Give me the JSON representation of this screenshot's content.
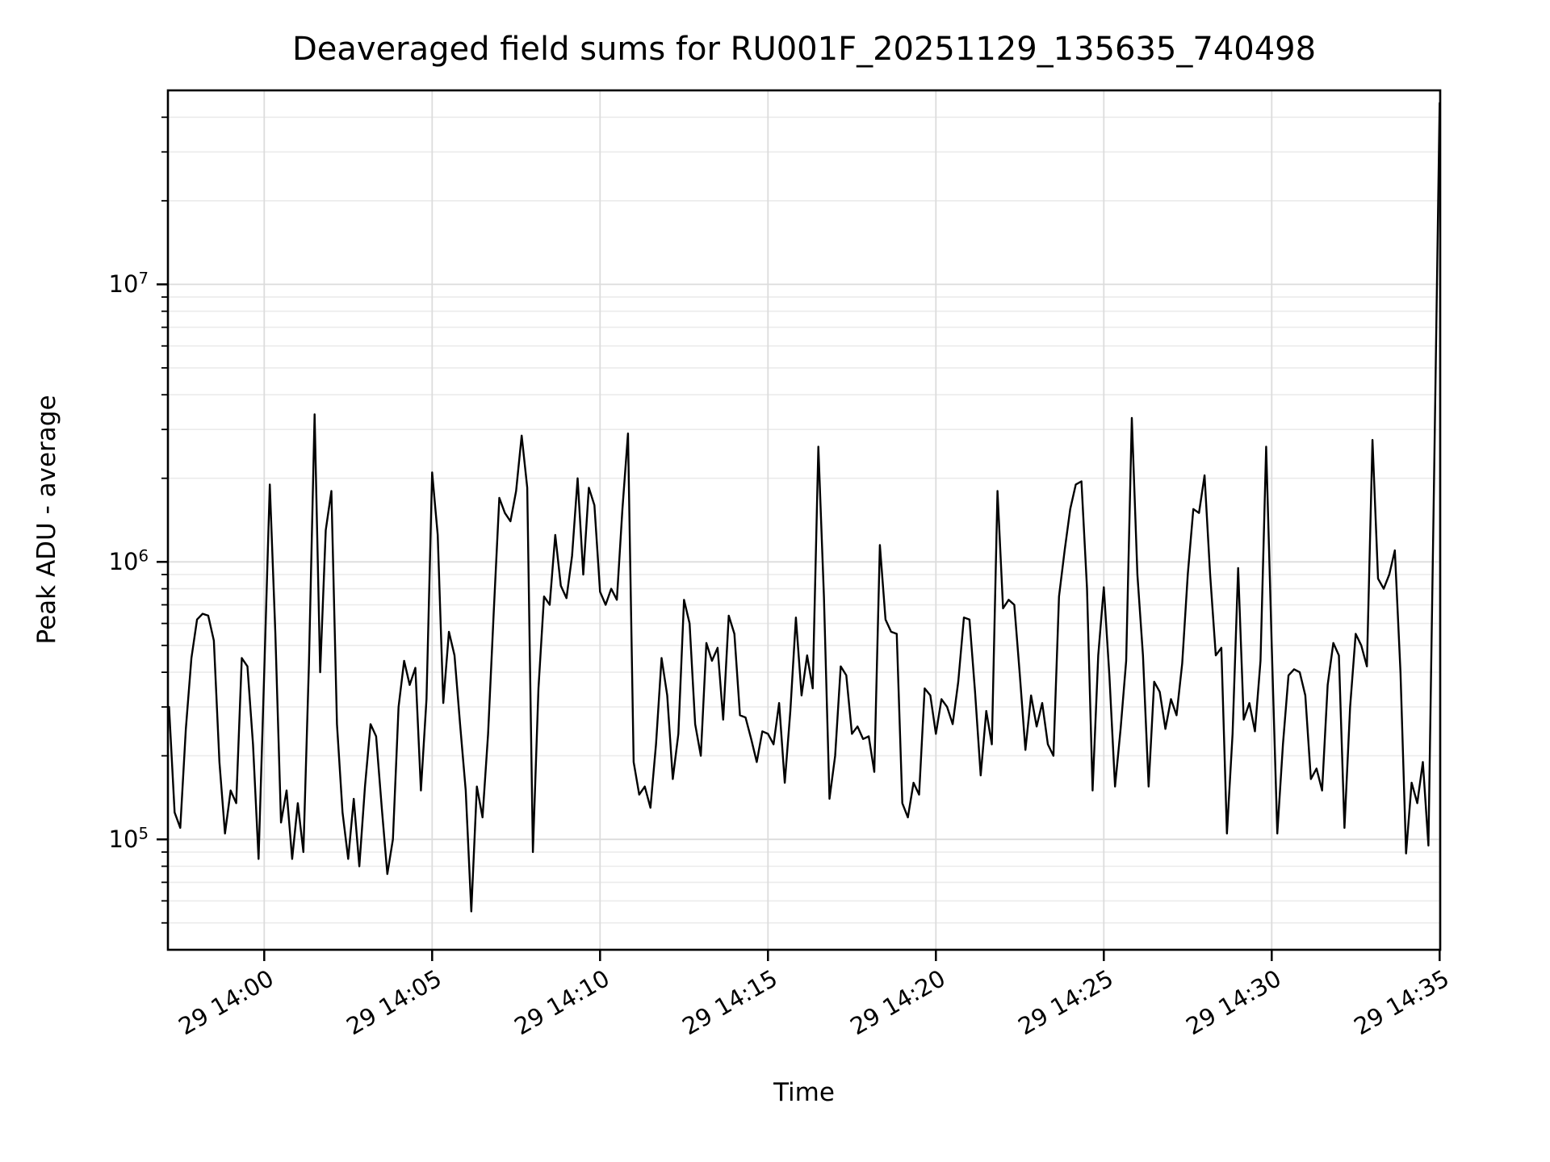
{
  "figure": {
    "background": "#ffffff",
    "line_color": "#000000",
    "major_grid_color": "#dcdcdc",
    "minor_grid_color": "#ebebeb",
    "spine_color": "#000000"
  },
  "chart_data": {
    "type": "line",
    "title": "Deaveraged field sums for RU001F_20251129_135635_740498",
    "xlabel": "Time",
    "ylabel": "Peak ADU - average",
    "yscale": "log",
    "ylim": [
      40000,
      50000000
    ],
    "xlim_offsets_seconds": [
      -172,
      2101
    ],
    "x_reference": "day 29, 14:00",
    "grid": true,
    "legend": null,
    "x_ticks": [
      {
        "label": "29 14:00",
        "offset_s": 0
      },
      {
        "label": "29 14:05",
        "offset_s": 300
      },
      {
        "label": "29 14:10",
        "offset_s": 600
      },
      {
        "label": "29 14:15",
        "offset_s": 900
      },
      {
        "label": "29 14:20",
        "offset_s": 1200
      },
      {
        "label": "29 14:25",
        "offset_s": 1500
      },
      {
        "label": "29 14:30",
        "offset_s": 1800
      },
      {
        "label": "29 14:35",
        "offset_s": 2100
      }
    ],
    "y_major_ticks": [
      {
        "base": "10",
        "exp": "5",
        "value": 100000
      },
      {
        "base": "10",
        "exp": "6",
        "value": 1000000
      },
      {
        "base": "10",
        "exp": "7",
        "value": 10000000
      }
    ],
    "series": [
      {
        "name": "peak-adu-minus-average",
        "color": "#000000",
        "line_width": 2.4,
        "start_offset_s": -170,
        "step_s": 10,
        "values": [
          300000,
          125000,
          110000,
          250000,
          450000,
          620000,
          650000,
          640000,
          520000,
          190000,
          105000,
          150000,
          135000,
          450000,
          420000,
          220000,
          85000,
          400000,
          1900000,
          550000,
          115000,
          150000,
          85000,
          135000,
          90000,
          430000,
          3400000,
          400000,
          1300000,
          1800000,
          260000,
          125000,
          85000,
          140000,
          80000,
          155000,
          260000,
          235000,
          130000,
          75000,
          100000,
          300000,
          440000,
          360000,
          415000,
          150000,
          320000,
          2100000,
          1250000,
          310000,
          560000,
          460000,
          260000,
          150000,
          55000,
          155000,
          120000,
          240000,
          650000,
          1700000,
          1500000,
          1400000,
          1800000,
          2850000,
          1850000,
          90000,
          350000,
          750000,
          700000,
          1250000,
          820000,
          740000,
          1050000,
          2000000,
          900000,
          1850000,
          1600000,
          780000,
          700000,
          800000,
          730000,
          1550000,
          2900000,
          190000,
          145000,
          155000,
          130000,
          220000,
          450000,
          330000,
          165000,
          240000,
          730000,
          600000,
          260000,
          200000,
          510000,
          440000,
          490000,
          270000,
          640000,
          550000,
          280000,
          275000,
          230000,
          190000,
          245000,
          240000,
          220000,
          310000,
          160000,
          290000,
          630000,
          330000,
          460000,
          350000,
          2600000,
          750000,
          140000,
          200000,
          420000,
          390000,
          240000,
          255000,
          230000,
          235000,
          175000,
          1150000,
          620000,
          560000,
          550000,
          135000,
          120000,
          160000,
          145000,
          350000,
          330000,
          240000,
          320000,
          300000,
          260000,
          370000,
          630000,
          620000,
          340000,
          170000,
          290000,
          220000,
          1800000,
          680000,
          730000,
          700000,
          390000,
          210000,
          330000,
          255000,
          310000,
          220000,
          200000,
          750000,
          1100000,
          1550000,
          1900000,
          1950000,
          800000,
          150000,
          460000,
          810000,
          390000,
          155000,
          250000,
          440000,
          3300000,
          900000,
          460000,
          155000,
          370000,
          340000,
          250000,
          320000,
          280000,
          430000,
          900000,
          1550000,
          1500000,
          2050000,
          900000,
          460000,
          490000,
          105000,
          240000,
          950000,
          270000,
          310000,
          245000,
          440000,
          2600000,
          500000,
          105000,
          220000,
          390000,
          410000,
          400000,
          330000,
          165000,
          180000,
          150000,
          360000,
          510000,
          460000,
          110000,
          300000,
          550000,
          500000,
          420000,
          2750000,
          870000,
          800000,
          900000,
          1100000,
          400000,
          89000,
          160000,
          135000,
          190000,
          95000,
          2000000,
          45000000
        ]
      }
    ]
  }
}
